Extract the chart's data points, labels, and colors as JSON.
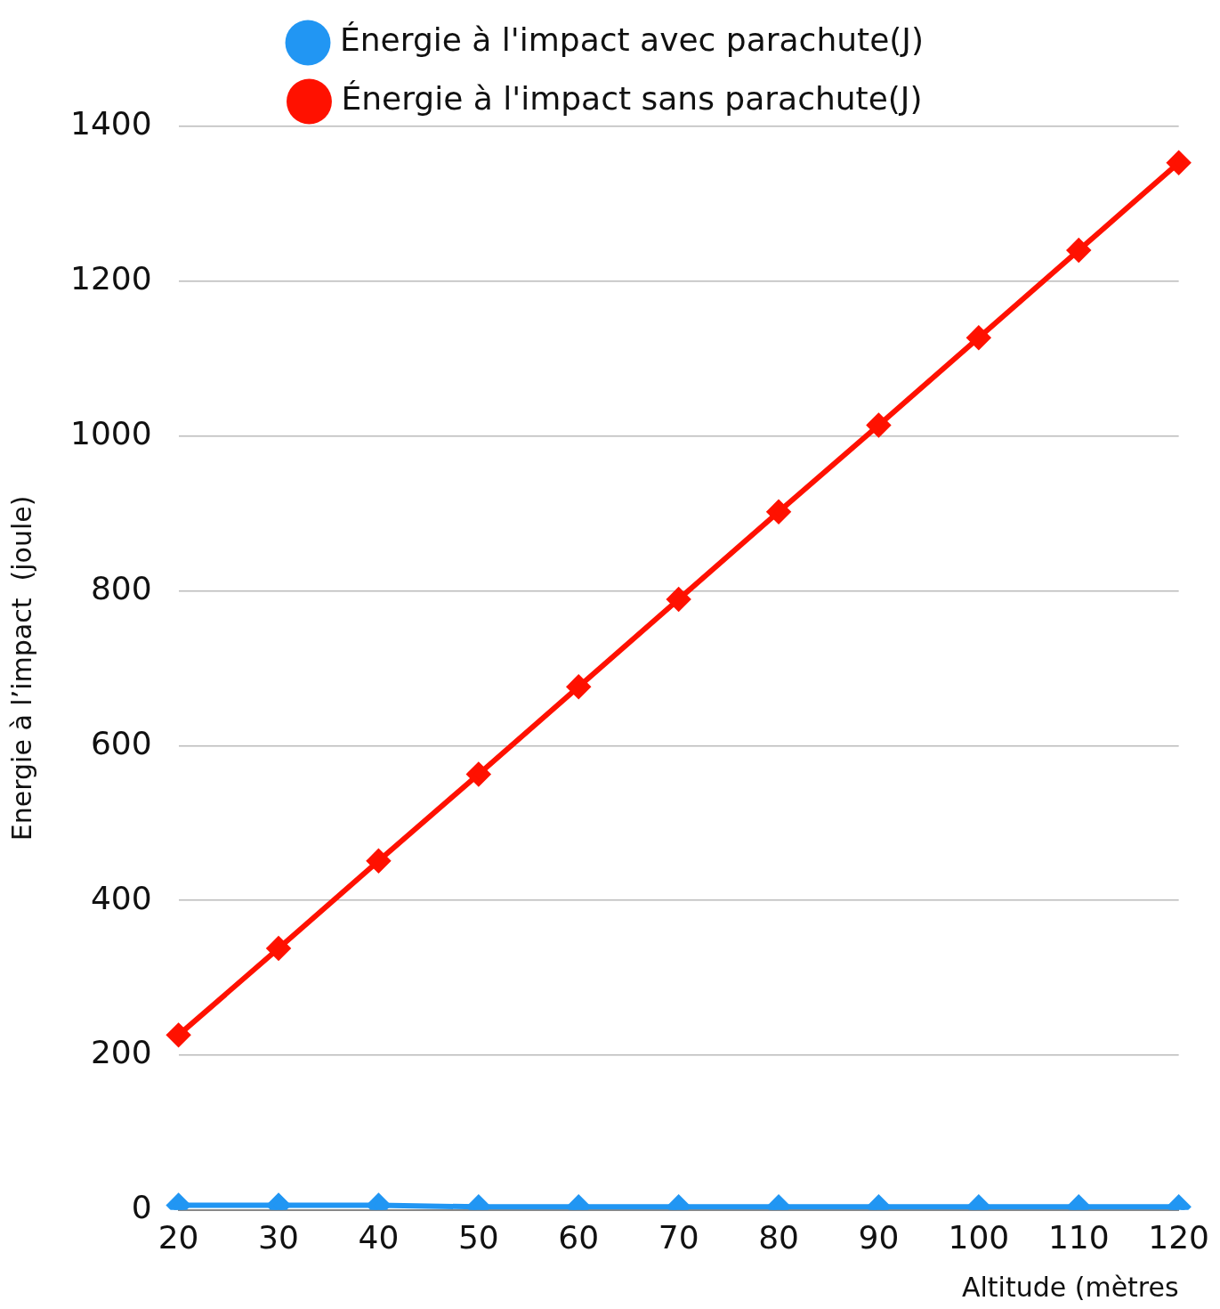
{
  "chart_data": {
    "type": "line",
    "xlabel": "Altitude (mètres",
    "ylabel": "Energie à l’impact  (joule)",
    "categories": [
      "20",
      "30",
      "40",
      "50",
      "60",
      "70",
      "80",
      "90",
      "100",
      "110",
      "120"
    ],
    "series": [
      {
        "name": "Énergie à l'impact avec parachute(J)",
        "color": "#2196f3",
        "values": [
          6,
          6,
          6,
          4,
          4,
          4,
          4,
          4,
          4,
          4,
          4
        ]
      },
      {
        "name": "Énergie à l'impact sans parachute(J)",
        "color": "#ff1100",
        "values": [
          226,
          338,
          451,
          563,
          676,
          789,
          902,
          1014,
          1127,
          1240,
          1353
        ]
      }
    ],
    "ylim": [
      0,
      1400
    ],
    "yticks": [
      0,
      200,
      400,
      600,
      800,
      1000,
      1200,
      1400
    ],
    "grid": "y",
    "legend": "top",
    "marker": "diamond",
    "line_style": "solid"
  }
}
